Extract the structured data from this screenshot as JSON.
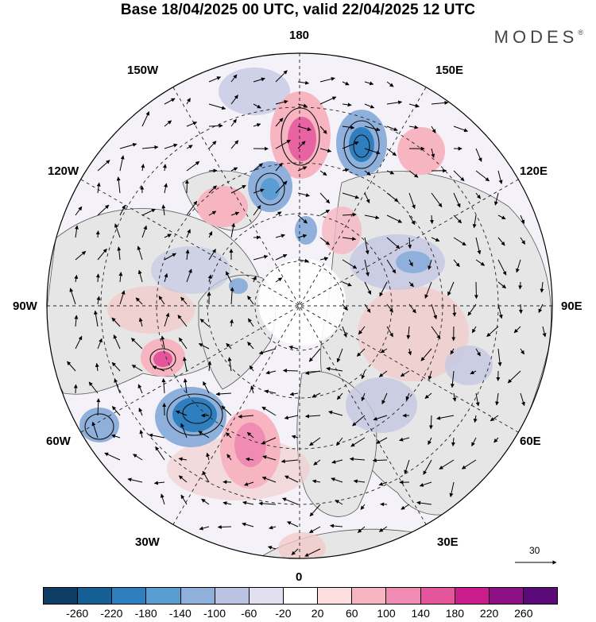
{
  "header": {
    "title": "Base 18/04/2025 00 UTC, valid 22/04/2025 12 UTC",
    "brand": "MODES",
    "brand_mark": "®"
  },
  "map": {
    "longitude_labels": {
      "top": "180",
      "top_left": "150W",
      "top_right": "150E",
      "upper_left": "120W",
      "upper_right": "120E",
      "left": "90W",
      "right": "90E",
      "lower_left": "60W",
      "lower_right": "60E",
      "bottom_left": "30W",
      "bottom_right": "30E",
      "bottom": "0"
    },
    "vector_scale_label": "30",
    "anomaly_colors": {
      "negative_strong": "#2f72b0",
      "negative": "#6f9ccf",
      "negative_weak": "#c4c8e2",
      "positive_weak": "#f2c9c9",
      "positive": "#ec9ab8",
      "positive_strong": "#d8479a",
      "land": "#e6e6e6"
    }
  },
  "colorbar": {
    "colors": [
      "#0d3c64",
      "#155f95",
      "#2f7fbf",
      "#5a9dd0",
      "#8fb0db",
      "#bcc3e2",
      "#e2e0f0",
      "#ffffff",
      "#fcdede",
      "#f6b5c0",
      "#f08bb3",
      "#e5559c",
      "#c91d8b",
      "#8d1184",
      "#5a0b78"
    ],
    "ticks": [
      "-260",
      "-220",
      "-180",
      "-140",
      "-100",
      "-60",
      "-20",
      "20",
      "60",
      "100",
      "140",
      "180",
      "220",
      "260"
    ]
  }
}
